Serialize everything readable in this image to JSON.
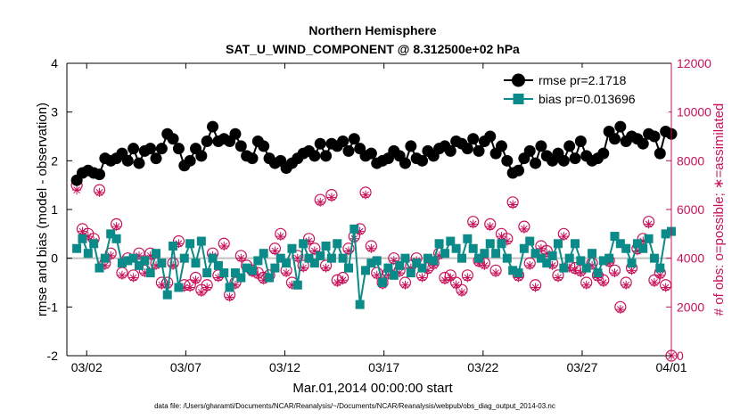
{
  "chart_data": {
    "type": "line",
    "title": "Northern Hemisphere",
    "subtitle": "SAT_U_WIND_COMPONENT @ 8.312500e+02 hPa",
    "xlabel": "Mar.01,2014 00:00:00 start",
    "ylabel": "rmse and bias (model - observation)",
    "y2label": "# of obs: o=possible; ∗=assimilated",
    "footnote": "data file: /Users/gharamti/Documents/NCAR/Reanalysis/~/Documents/NCAR/Reanalysis/webpub/obs_diag_output_2014-03.nc",
    "xlim": [
      0.5,
      31
    ],
    "ylim": [
      -2,
      4
    ],
    "y2lim": [
      0,
      12000
    ],
    "x_ticks": [
      {
        "x": 1.5,
        "label": "03/02"
      },
      {
        "x": 6.5,
        "label": "03/07"
      },
      {
        "x": 11.5,
        "label": "03/12"
      },
      {
        "x": 16.5,
        "label": "03/17"
      },
      {
        "x": 21.5,
        "label": "03/22"
      },
      {
        "x": 26.5,
        "label": "03/27"
      },
      {
        "x": 31,
        "label": "04/01"
      }
    ],
    "y_ticks": [
      "-2",
      "-1",
      "0",
      "1",
      "2",
      "3",
      "4"
    ],
    "y2_ticks": [
      "0",
      "2000",
      "4000",
      "6000",
      "8000",
      "10000",
      "12000"
    ],
    "legend_position": "top-right",
    "zero_line": true,
    "series": [
      {
        "name": "rmse pr=2.1718",
        "color": "#000000",
        "marker": "circle",
        "axis": "left",
        "values": [
          1.6,
          1.75,
          1.8,
          1.75,
          1.72,
          2.05,
          2.0,
          2.05,
          2.15,
          2.0,
          2.25,
          1.95,
          2.2,
          2.25,
          2.05,
          2.25,
          2.55,
          2.45,
          2.25,
          1.9,
          2.0,
          2.25,
          2.1,
          2.4,
          2.7,
          2.4,
          2.45,
          2.4,
          2.55,
          2.3,
          2.1,
          2.05,
          2.4,
          2.3,
          2.05,
          1.95,
          2.0,
          1.85,
          1.95,
          2.05,
          2.15,
          2.2,
          2.1,
          2.35,
          2.1,
          2.35,
          2.3,
          2.4,
          2.2,
          2.45,
          2.25,
          2.1,
          2.15,
          1.95,
          2.0,
          2.05,
          2.2,
          2.1,
          1.95,
          2.3,
          2.05,
          2.0,
          2.2,
          2.1,
          2.25,
          2.3,
          2.2,
          2.4,
          2.35,
          2.25,
          2.45,
          2.2,
          2.4,
          2.5,
          2.15,
          2.3,
          2.0,
          1.75,
          1.8,
          2.05,
          2.2,
          1.95,
          2.3,
          2.1,
          2.0,
          2.15,
          2.0,
          2.3,
          2.05,
          2.4,
          2.1,
          2.0,
          2.05,
          2.15,
          2.6,
          2.45,
          2.7,
          2.4,
          2.5,
          2.45,
          2.35,
          2.55,
          2.5,
          2.15,
          2.6,
          2.55
        ]
      },
      {
        "name": "bias pr=0.013696",
        "color": "#0a8a88",
        "marker": "square",
        "axis": "left",
        "values": [
          0.2,
          0.4,
          0.1,
          0.3,
          -0.2,
          0.0,
          0.5,
          0.4,
          -0.1,
          -0.05,
          0.0,
          -0.15,
          -0.05,
          -0.3,
          0.1,
          -0.1,
          -0.75,
          0.25,
          -0.6,
          0.0,
          0.3,
          -0.1,
          0.35,
          -0.3,
          0.0,
          -0.15,
          -0.3,
          -0.6,
          -0.3,
          -0.4,
          -0.2,
          -0.25,
          -0.05,
          0.1,
          -0.4,
          -0.2,
          0.0,
          -0.1,
          0.2,
          -0.55,
          0.3,
          0.0,
          -0.1,
          0.05,
          0.25,
          0.0,
          0.3,
          0.0,
          -0.2,
          0.6,
          -0.95,
          -0.25,
          -0.1,
          -0.05,
          -0.5,
          -0.2,
          -0.35,
          -0.15,
          0.0,
          -0.3,
          -0.1,
          -0.2,
          0.0,
          -0.05,
          0.3,
          0.1,
          0.35,
          0.2,
          0.0,
          0.4,
          0.2,
          0.0,
          0.1,
          0.3,
          0.1,
          0.3,
          0.0,
          -0.25,
          -0.3,
          0.2,
          0.35,
          0.1,
          0.0,
          -0.1,
          0.05,
          0.3,
          -0.2,
          0.0,
          0.3,
          -0.05,
          -0.2,
          0.1,
          -0.3,
          -0.05,
          0.0,
          0.45,
          0.3,
          0.2,
          -0.1,
          0.3,
          0.2,
          0.4,
          0.0,
          -0.2,
          0.5,
          0.55
        ]
      },
      {
        "name": "possible",
        "color": "#c8125a",
        "marker": "open-circle",
        "axis": "right",
        "values": [
          7000,
          5200,
          5000,
          4800,
          6800,
          3800,
          4200,
          5400,
          3400,
          4000,
          3300,
          4200,
          3500,
          4200,
          3800,
          3000,
          3000,
          3800,
          4700,
          2900,
          2900,
          3200,
          2700,
          2900,
          4200,
          3300,
          4600,
          2500,
          3000,
          4100,
          3700,
          3500,
          3400,
          3200,
          3300,
          4400,
          5000,
          3500,
          3000,
          4100,
          3700,
          4800,
          4400,
          6400,
          3700,
          6600,
          3100,
          3200,
          4400,
          4900,
          5200,
          6700,
          4500,
          3400,
          3000,
          3400,
          4000,
          3500,
          3000,
          3700,
          4000,
          3300,
          3600,
          3800,
          4200,
          3200,
          3300,
          3000,
          2700,
          3300,
          5500,
          3900,
          3800,
          5400,
          3500,
          5000,
          4800,
          6300,
          3300,
          5300,
          3800,
          2900,
          4500,
          4300,
          3800,
          3300,
          5000,
          3700,
          3600,
          3500,
          3000,
          3800,
          3300,
          3100,
          3900,
          3500,
          2000,
          3000,
          3600,
          4400,
          4800,
          5500,
          3100,
          3400,
          2900,
          0
        ]
      },
      {
        "name": "assimilated",
        "color": "#c8125a",
        "marker": "asterisk",
        "axis": "right",
        "values": [
          6800,
          5100,
          4900,
          4700,
          6700,
          3700,
          4100,
          5300,
          3300,
          3900,
          3200,
          4100,
          3400,
          4100,
          3700,
          2900,
          2900,
          3700,
          4600,
          2800,
          2800,
          3100,
          2600,
          2800,
          4100,
          3200,
          4500,
          2400,
          2900,
          4000,
          3600,
          3400,
          3300,
          3100,
          3200,
          4300,
          4900,
          3400,
          2900,
          4000,
          3600,
          4700,
          4300,
          6300,
          3600,
          6500,
          3000,
          3100,
          4300,
          4800,
          5100,
          6600,
          4400,
          3300,
          2900,
          3300,
          3900,
          3400,
          2900,
          3600,
          3900,
          3200,
          3500,
          3700,
          4100,
          3100,
          3200,
          2900,
          2600,
          3200,
          5400,
          3800,
          3700,
          5300,
          3400,
          4900,
          4700,
          6200,
          3200,
          5200,
          3700,
          2800,
          4400,
          4200,
          3700,
          3200,
          4900,
          3600,
          3500,
          3400,
          2900,
          3700,
          3200,
          3000,
          3800,
          3400,
          1900,
          2900,
          3500,
          4300,
          4700,
          5400,
          3000,
          3300,
          2800,
          0
        ]
      }
    ]
  }
}
